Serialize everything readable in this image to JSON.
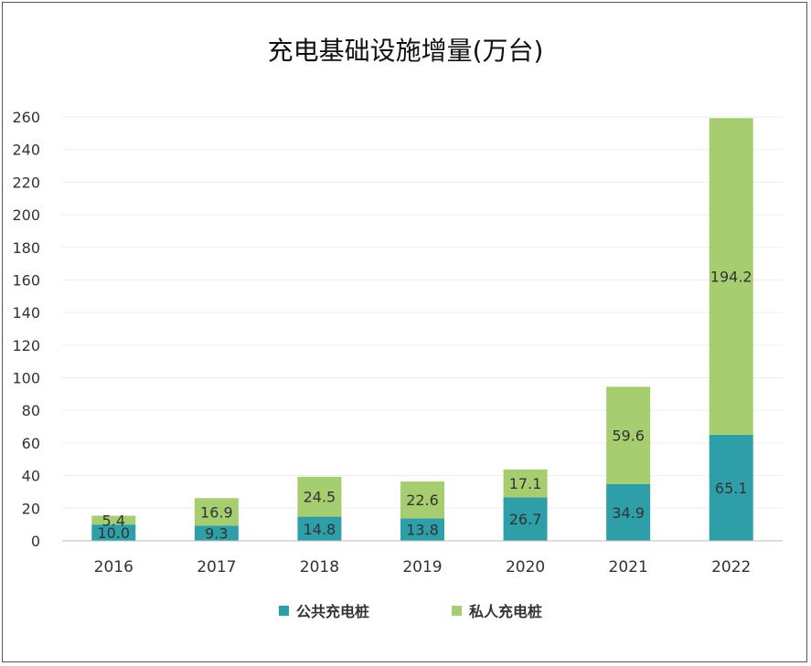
{
  "chart_data": {
    "type": "bar",
    "stacked": true,
    "title": "充电基础设施增量(万台)",
    "categories": [
      "2016",
      "2017",
      "2018",
      "2019",
      "2020",
      "2021",
      "2022"
    ],
    "series": [
      {
        "name": "公共充电桩",
        "color": "#2e9fa8",
        "values": [
          10.0,
          9.3,
          14.8,
          13.8,
          26.7,
          34.9,
          65.1
        ],
        "labels": [
          "10.0",
          "9.3",
          "14.8",
          "13.8",
          "26.7",
          "34.9",
          "65.1"
        ]
      },
      {
        "name": "私人充电桩",
        "color": "#a6cd6f",
        "values": [
          5.4,
          16.9,
          24.5,
          22.6,
          17.1,
          59.6,
          194.2
        ],
        "labels": [
          "5.4",
          "16.9",
          "24.5",
          "22.6",
          "17.1",
          "59.6",
          "194.2"
        ]
      }
    ],
    "yticks": [
      "0",
      "20",
      "40",
      "60",
      "80",
      "100",
      "120",
      "140",
      "160",
      "180",
      "200",
      "220",
      "240",
      "260"
    ],
    "ylim": [
      0,
      260
    ],
    "grid": true,
    "legend_position": "bottom"
  }
}
